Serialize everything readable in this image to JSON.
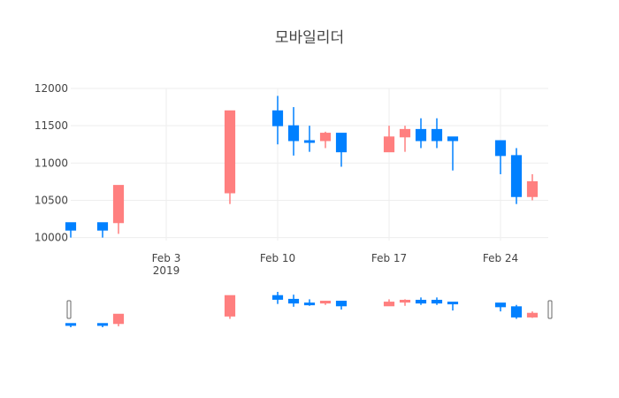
{
  "chart_data": {
    "type": "candlestick",
    "title": "모바일리더",
    "xlabel": "",
    "ylabel": "",
    "ylim": [
      9960,
      12000
    ],
    "y_ticks": [
      10000,
      10500,
      11000,
      11500,
      12000
    ],
    "x_range": [
      "2019-01-28",
      "2019-02-27"
    ],
    "x_ticks": [
      {
        "date": "2019-02-03",
        "label": "Feb 3",
        "sublabel": "2019"
      },
      {
        "date": "2019-02-10",
        "label": "Feb 10",
        "sublabel": ""
      },
      {
        "date": "2019-02-17",
        "label": "Feb 17",
        "sublabel": ""
      },
      {
        "date": "2019-02-24",
        "label": "Feb 24",
        "sublabel": ""
      }
    ],
    "grid": true,
    "rangeslider": true,
    "colors": {
      "increasing": "#FF7F7F",
      "decreasing": "#0080FF",
      "grid": "#eeeeee",
      "text": "#444444"
    },
    "ohlc": [
      {
        "date": "2019-01-28",
        "open": 10200,
        "high": 10200,
        "low": 10000,
        "close": 10100
      },
      {
        "date": "2019-01-30",
        "open": 10200,
        "high": 10200,
        "low": 10000,
        "close": 10100
      },
      {
        "date": "2019-01-31",
        "open": 10200,
        "high": 10700,
        "low": 10050,
        "close": 10700
      },
      {
        "date": "2019-02-07",
        "open": 10600,
        "high": 11700,
        "low": 10450,
        "close": 11700
      },
      {
        "date": "2019-02-10",
        "open": 11700,
        "high": 11900,
        "low": 11250,
        "close": 11500
      },
      {
        "date": "2019-02-11",
        "open": 11500,
        "high": 11750,
        "low": 11100,
        "close": 11300
      },
      {
        "date": "2019-02-12",
        "open": 11300,
        "high": 11500,
        "low": 11150,
        "close": 11280
      },
      {
        "date": "2019-02-13",
        "open": 11300,
        "high": 11420,
        "low": 11200,
        "close": 11400
      },
      {
        "date": "2019-02-14",
        "open": 11400,
        "high": 11400,
        "low": 10950,
        "close": 11150
      },
      {
        "date": "2019-02-17",
        "open": 11150,
        "high": 11500,
        "low": 11150,
        "close": 11350
      },
      {
        "date": "2019-02-18",
        "open": 11350,
        "high": 11500,
        "low": 11150,
        "close": 11450
      },
      {
        "date": "2019-02-19",
        "open": 11450,
        "high": 11600,
        "low": 11200,
        "close": 11300
      },
      {
        "date": "2019-02-20",
        "open": 11450,
        "high": 11600,
        "low": 11200,
        "close": 11300
      },
      {
        "date": "2019-02-21",
        "open": 11350,
        "high": 11350,
        "low": 10900,
        "close": 11300
      },
      {
        "date": "2019-02-24",
        "open": 11300,
        "high": 11300,
        "low": 10850,
        "close": 11100
      },
      {
        "date": "2019-02-25",
        "open": 11100,
        "high": 11200,
        "low": 10450,
        "close": 10550
      },
      {
        "date": "2019-02-26",
        "open": 10550,
        "high": 10850,
        "low": 10500,
        "close": 10750
      }
    ]
  }
}
